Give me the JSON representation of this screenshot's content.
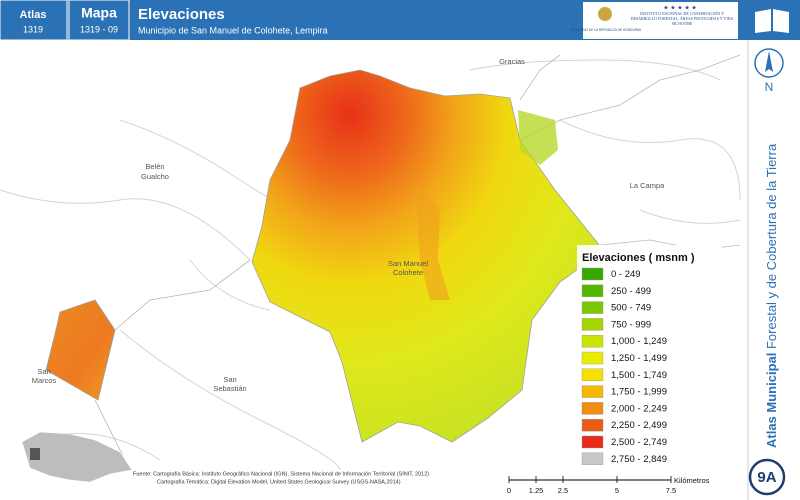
{
  "header": {
    "atlas_label": "Atlas",
    "atlas_number": "1319",
    "map_label": "Mapa",
    "map_number": "1319 - 09",
    "title": "Elevaciones",
    "subtitle": "Municipio de San Manuel de Colohete, Lempira",
    "logo_left": "GOBIERNO DE LA REPÚBLICA DE HONDURAS",
    "logo_right": "INSTITUTO NACIONAL DE CONSERVACIÓN Y DESARROLLO FORESTAL, ÁREAS PROTEGIDAS Y VIDA SILVESTRE"
  },
  "side_panel": {
    "north": "N",
    "vertical_title_bold": "Atlas Municipal",
    "vertical_title": "Forestal y de Cobertura de la Tierra",
    "badge": "9A"
  },
  "places": [
    {
      "label": "Gracias"
    },
    {
      "label": "Belén"
    },
    {
      "label": "Gualcho"
    },
    {
      "label": "La Campa"
    },
    {
      "label": "San Manuel"
    },
    {
      "label": "Colohete"
    },
    {
      "label": "San"
    },
    {
      "label": "Marcos"
    },
    {
      "label": "San"
    },
    {
      "label": "Sebastián"
    }
  ],
  "legend": {
    "title": "Elevaciones ( msnm )",
    "items": [
      {
        "label": "0 - 249",
        "color": "#38a800"
      },
      {
        "label": "250 - 499",
        "color": "#55b800"
      },
      {
        "label": "500 - 749",
        "color": "#7ac800"
      },
      {
        "label": "750 - 999",
        "color": "#a3d600"
      },
      {
        "label": "1,000 - 1,249",
        "color": "#c8e400"
      },
      {
        "label": "1,250 - 1,499",
        "color": "#e8ec00"
      },
      {
        "label": "1,500 - 1,749",
        "color": "#f5e000"
      },
      {
        "label": "1,750 - 1,999",
        "color": "#f5b800"
      },
      {
        "label": "2,000 - 2,249",
        "color": "#f08c10"
      },
      {
        "label": "2,250 - 2,499",
        "color": "#ec5a18"
      },
      {
        "label": "2,500 - 2,749",
        "color": "#e82a18"
      },
      {
        "label": "2,750 - 2,849",
        "color": "#c8c8c8"
      }
    ]
  },
  "source": {
    "line1": "Fuente: Cartografía Básica: Instituto Geográfico Nacional (IGN), Sistema Nacional de Información Territorial (SINIT, 2012)",
    "line2": "Cartografía Temática: Digital Elevation Model, United States Geological Survey (USGS-NASA,2014)"
  },
  "scale_bar": {
    "ticks": [
      0,
      1.25,
      2.5,
      5,
      7.5
    ],
    "unit": "Kilómetros"
  }
}
